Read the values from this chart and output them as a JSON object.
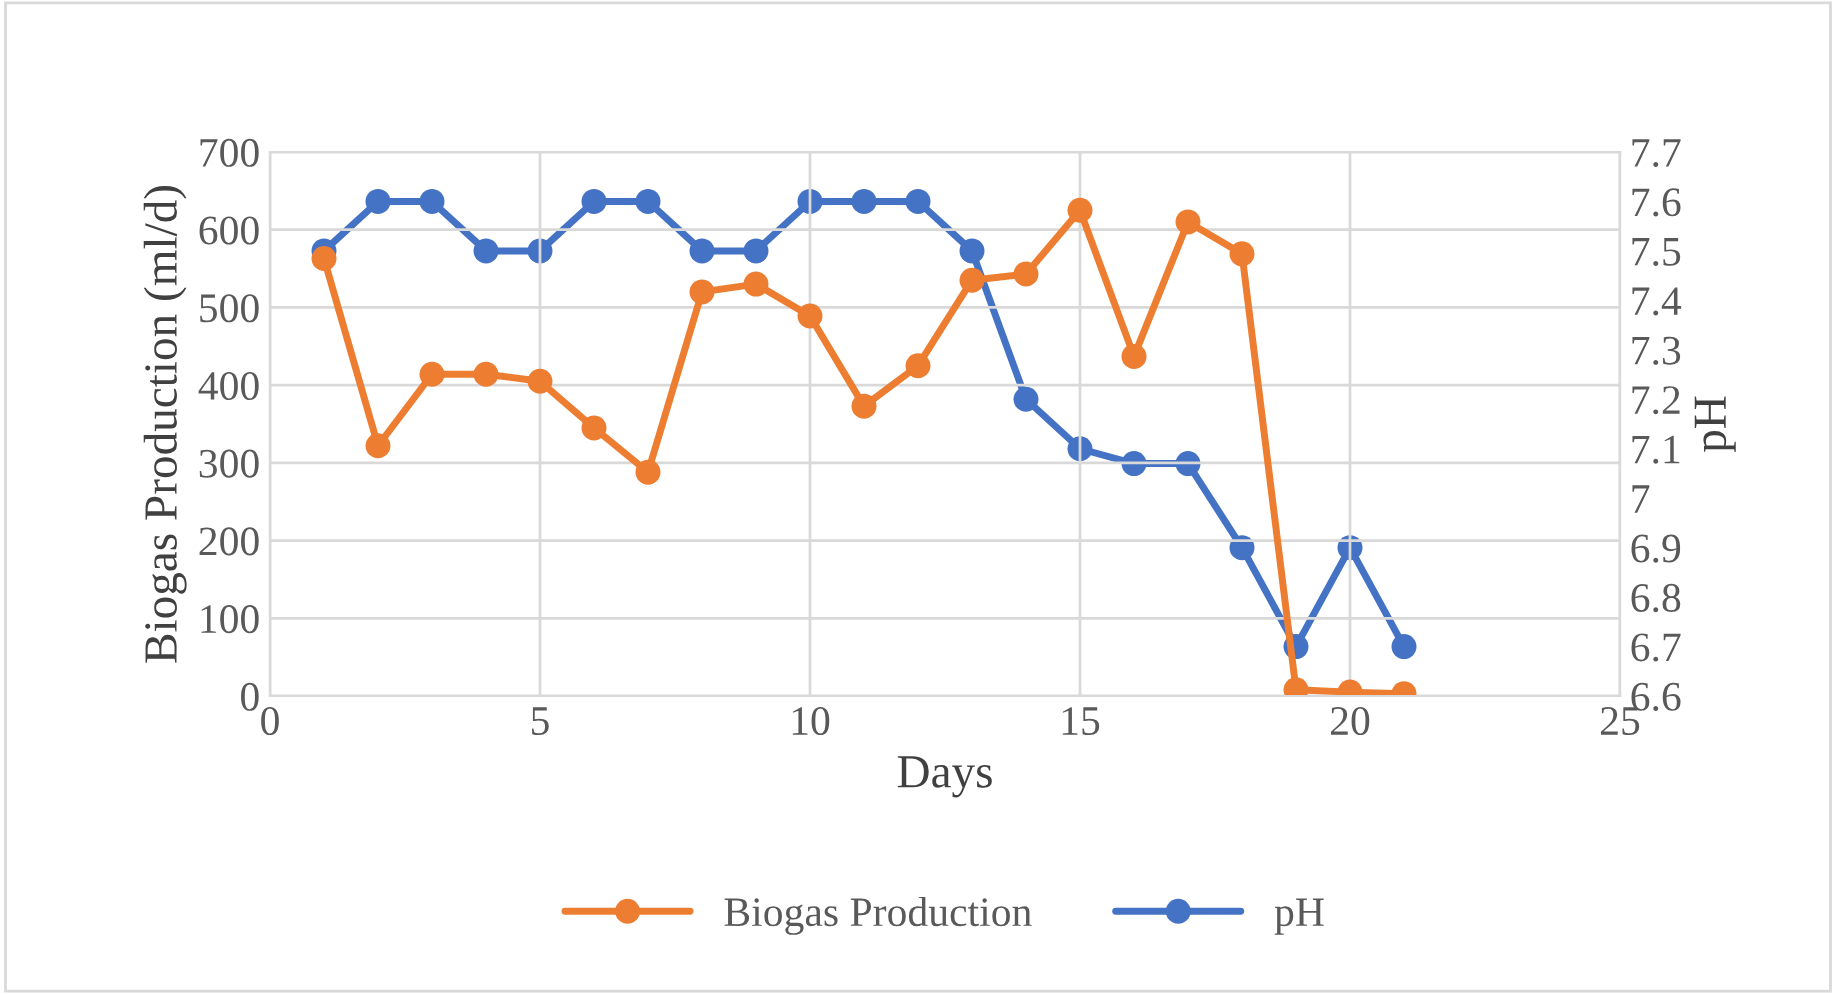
{
  "chart_data": {
    "type": "line",
    "xlabel": "Days",
    "ylabel": "Biogas Production (ml/d)",
    "y2label": "pH",
    "x": [
      1,
      2,
      3,
      4,
      5,
      6,
      7,
      8,
      9,
      10,
      11,
      12,
      13,
      14,
      15,
      16,
      17,
      18,
      19,
      20,
      21
    ],
    "series": [
      {
        "name": "Biogas Production",
        "color": "#ed7d31",
        "values": [
          563,
          322,
          414,
          414,
          405,
          345,
          288,
          520,
          530,
          489,
          373,
          425,
          535,
          543,
          625,
          437,
          610,
          569,
          8,
          5,
          3
        ]
      },
      {
        "name": "pH",
        "color": "#4472c4",
        "axis": "y2",
        "values": [
          7.5,
          7.6,
          7.6,
          7.5,
          7.5,
          7.6,
          7.6,
          7.5,
          7.5,
          7.6,
          7.6,
          7.6,
          7.5,
          7.2,
          7.1,
          7.07,
          7.07,
          6.9,
          6.7,
          6.9,
          6.7
        ]
      }
    ],
    "xlim": [
      0,
      25
    ],
    "xticks": [
      0,
      5,
      10,
      15,
      20,
      25
    ],
    "ylim": [
      0,
      700
    ],
    "yticks": [
      0,
      100,
      200,
      300,
      400,
      500,
      600,
      700
    ],
    "y2lim": [
      6.6,
      7.7
    ],
    "y2ticks": [
      6.6,
      6.7,
      6.8,
      6.9,
      7,
      7.1,
      7.2,
      7.3,
      7.4,
      7.5,
      7.6,
      7.7
    ],
    "grid": true,
    "legend": "bottom",
    "marker": "circle",
    "line_style": "solid"
  }
}
